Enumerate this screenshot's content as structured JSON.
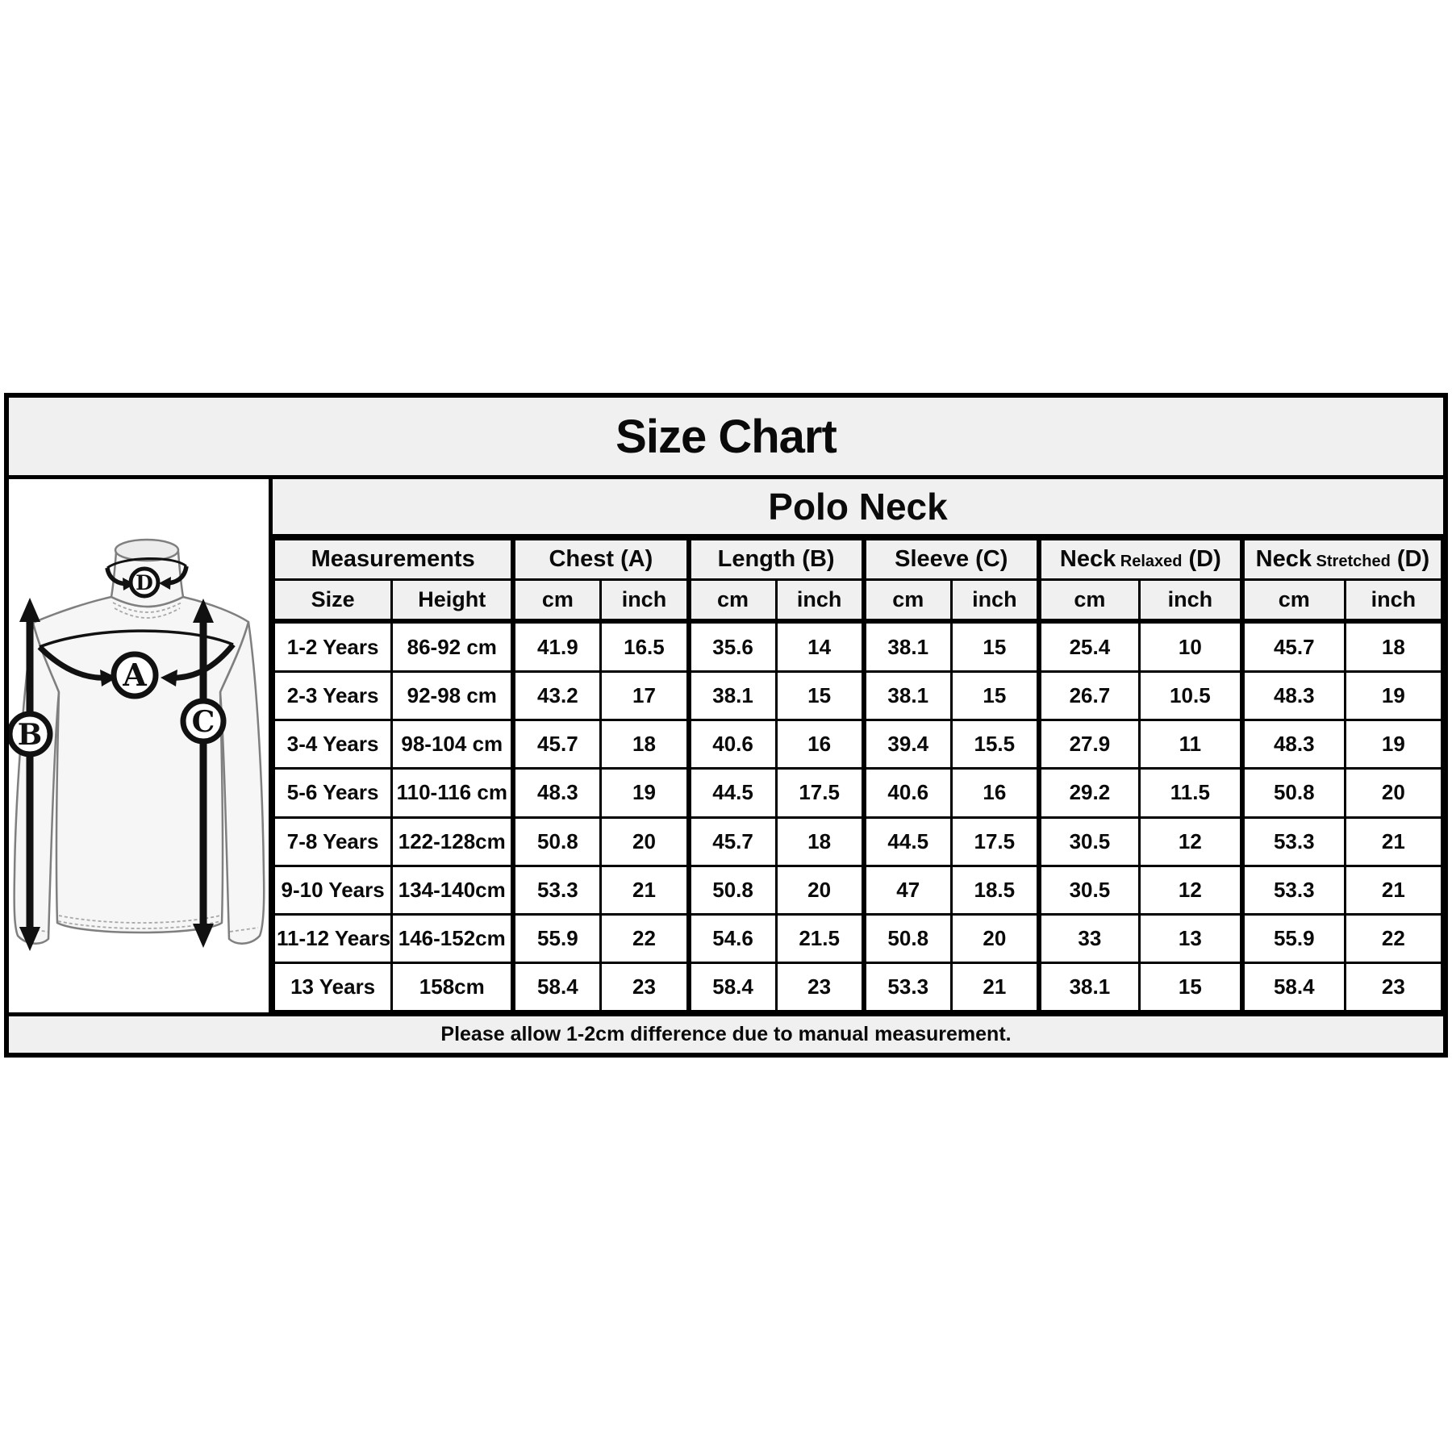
{
  "page": {
    "title": "Size Chart",
    "subtitle": "Polo Neck",
    "footer_note": "Please allow 1-2cm difference due to manual measurement."
  },
  "diagram": {
    "labels": {
      "chest": "A",
      "length": "B",
      "sleeve": "C",
      "neck": "D"
    }
  },
  "colors": {
    "band_bg": "#f0f0f0",
    "cell_bg": "#ffffff",
    "border": "#000000"
  },
  "chart_data": {
    "type": "table",
    "title": "Size Chart",
    "subtitle": "Polo Neck",
    "header_groups": [
      {
        "label": "Measurements",
        "small": "",
        "tail": ""
      },
      {
        "label": "Chest (A)",
        "small": "",
        "tail": ""
      },
      {
        "label": "Length (B)",
        "small": "",
        "tail": ""
      },
      {
        "label": "Sleeve (C)",
        "small": "",
        "tail": ""
      },
      {
        "label": "Neck",
        "small": "Relaxed",
        "tail": "(D)"
      },
      {
        "label": "Neck",
        "small": "Stretched",
        "tail": "(D)"
      }
    ],
    "sub_headers": [
      "Size",
      "Height",
      "cm",
      "inch",
      "cm",
      "inch",
      "cm",
      "inch",
      "cm",
      "inch",
      "cm",
      "inch"
    ],
    "rows": [
      [
        "1-2 Years",
        "86-92 cm",
        "41.9",
        "16.5",
        "35.6",
        "14",
        "38.1",
        "15",
        "25.4",
        "10",
        "45.7",
        "18"
      ],
      [
        "2-3 Years",
        "92-98 cm",
        "43.2",
        "17",
        "38.1",
        "15",
        "38.1",
        "15",
        "26.7",
        "10.5",
        "48.3",
        "19"
      ],
      [
        "3-4 Years",
        "98-104 cm",
        "45.7",
        "18",
        "40.6",
        "16",
        "39.4",
        "15.5",
        "27.9",
        "11",
        "48.3",
        "19"
      ],
      [
        "5-6 Years",
        "110-116 cm",
        "48.3",
        "19",
        "44.5",
        "17.5",
        "40.6",
        "16",
        "29.2",
        "11.5",
        "50.8",
        "20"
      ],
      [
        "7-8 Years",
        "122-128cm",
        "50.8",
        "20",
        "45.7",
        "18",
        "44.5",
        "17.5",
        "30.5",
        "12",
        "53.3",
        "21"
      ],
      [
        "9-10 Years",
        "134-140cm",
        "53.3",
        "21",
        "50.8",
        "20",
        "47",
        "18.5",
        "30.5",
        "12",
        "53.3",
        "21"
      ],
      [
        "11-12 Years",
        "146-152cm",
        "55.9",
        "22",
        "54.6",
        "21.5",
        "50.8",
        "20",
        "33",
        "13",
        "55.9",
        "22"
      ],
      [
        "13 Years",
        "158cm",
        "58.4",
        "23",
        "58.4",
        "23",
        "53.3",
        "21",
        "38.1",
        "15",
        "58.4",
        "23"
      ]
    ],
    "footer": "Please allow 1-2cm difference due to manual measurement."
  }
}
